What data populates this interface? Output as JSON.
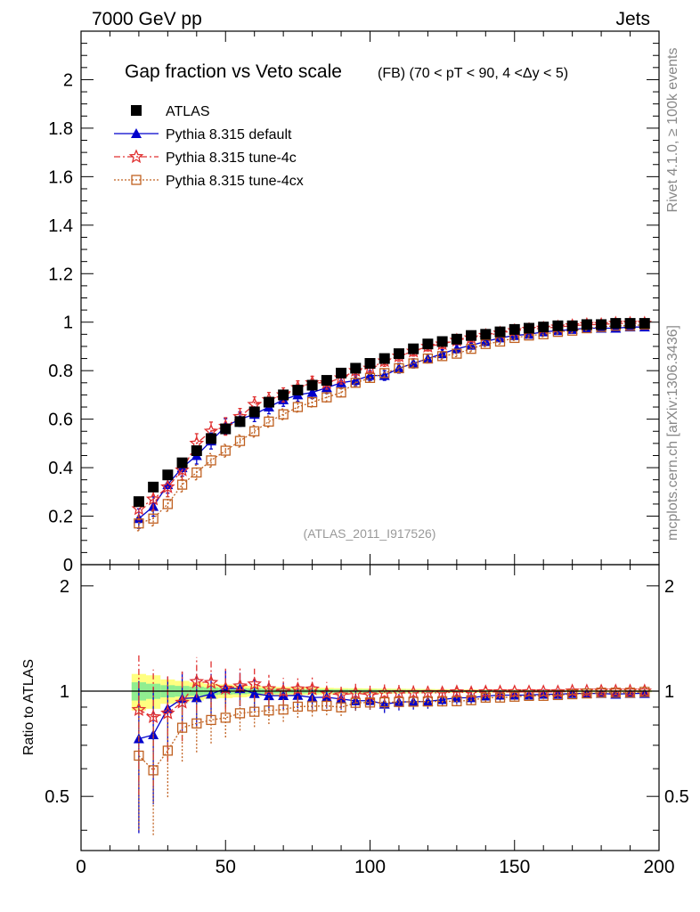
{
  "header": {
    "left": "7000 GeV pp",
    "right": "Jets"
  },
  "side_labels": {
    "rivet": "Rivet 4.1.0, ≥ 100k events",
    "mcplots": "mcplots.cern.ch [arXiv:1306.3436]"
  },
  "chart_data": {
    "type": "line",
    "title": "Gap fraction vs Veto scale",
    "title_suffix": "(FB) (70 < pT <  90, 4 <Δy < 5)",
    "analysis_tag": "(ATLAS_2011_I917526)",
    "xlabel": "",
    "ylabel": "",
    "ratio_ylabel": "Ratio to ATLAS",
    "xlim": [
      0,
      200
    ],
    "ylim": [
      0,
      2.2
    ],
    "ratio_ylim": [
      0.35,
      2.3
    ],
    "x_ticks": [
      "0",
      "50",
      "100",
      "150",
      "200"
    ],
    "y_ticks": [
      "0",
      "0.2",
      "0.4",
      "0.6",
      "0.8",
      "1",
      "1.2",
      "1.4",
      "1.6",
      "1.8",
      "2"
    ],
    "ratio_ticks": [
      "0.5",
      "1",
      "2"
    ],
    "legend_position": "top-left",
    "colors": {
      "data": "#000000",
      "default": "#0000cc",
      "tune4c": "#e03030",
      "tune4cx": "#c06020",
      "band_inner": "#90ee90",
      "band_outer": "#ffff80"
    },
    "x": [
      20,
      25,
      30,
      35,
      40,
      45,
      50,
      55,
      60,
      65,
      70,
      75,
      80,
      85,
      90,
      95,
      100,
      105,
      110,
      115,
      120,
      125,
      130,
      135,
      140,
      145,
      150,
      155,
      160,
      165,
      170,
      175,
      180,
      185,
      190,
      195
    ],
    "band_inner": [
      0.06,
      0.05,
      0.04,
      0.035,
      0.03,
      0.025,
      0.022,
      0.02,
      0.018,
      0.016,
      0.015,
      0.014,
      0.013,
      0.012,
      0.011,
      0.01,
      0.01,
      0.009,
      0.009,
      0.008,
      0.008,
      0.007,
      0.007,
      0.006,
      0.006,
      0.006,
      0.005,
      0.005,
      0.005,
      0.005,
      0.004,
      0.004,
      0.004,
      0.004,
      0.004,
      0.004
    ],
    "band_outer": [
      0.12,
      0.11,
      0.08,
      0.07,
      0.06,
      0.05,
      0.045,
      0.04,
      0.035,
      0.03,
      0.028,
      0.026,
      0.024,
      0.022,
      0.02,
      0.019,
      0.018,
      0.017,
      0.016,
      0.015,
      0.014,
      0.013,
      0.012,
      0.011,
      0.011,
      0.01,
      0.01,
      0.009,
      0.009,
      0.008,
      0.008,
      0.008,
      0.007,
      0.007,
      0.007,
      0.007
    ],
    "series": [
      {
        "name": "ATLAS",
        "key": "data",
        "values": [
          0.26,
          0.32,
          0.37,
          0.42,
          0.47,
          0.52,
          0.56,
          0.59,
          0.63,
          0.67,
          0.7,
          0.72,
          0.74,
          0.76,
          0.79,
          0.81,
          0.83,
          0.85,
          0.87,
          0.89,
          0.91,
          0.92,
          0.93,
          0.945,
          0.95,
          0.96,
          0.97,
          0.975,
          0.98,
          0.985,
          0.985,
          0.99,
          0.99,
          0.995,
          0.995,
          0.995
        ]
      },
      {
        "name": "Pythia 8.315 default",
        "key": "default",
        "values": [
          0.19,
          0.24,
          0.33,
          0.4,
          0.45,
          0.51,
          0.57,
          0.6,
          0.62,
          0.65,
          0.68,
          0.7,
          0.71,
          0.73,
          0.75,
          0.76,
          0.78,
          0.78,
          0.81,
          0.83,
          0.85,
          0.87,
          0.89,
          0.905,
          0.92,
          0.935,
          0.945,
          0.95,
          0.96,
          0.965,
          0.97,
          0.975,
          0.975,
          0.975,
          0.98,
          0.98
        ],
        "errors": [
          0.04,
          0.04,
          0.035,
          0.035,
          0.035,
          0.033,
          0.032,
          0.03,
          0.03,
          0.028,
          0.027,
          0.026,
          0.025,
          0.024,
          0.023,
          0.022,
          0.021,
          0.02,
          0.02,
          0.019,
          0.018,
          0.017,
          0.016,
          0.016,
          0.015,
          0.014,
          0.013,
          0.012,
          0.012,
          0.011,
          0.011,
          0.01,
          0.01,
          0.01,
          0.01,
          0.01
        ]
      },
      {
        "name": "Pythia 8.315 tune-4c",
        "key": "tune4c",
        "values": [
          0.23,
          0.27,
          0.32,
          0.39,
          0.5,
          0.55,
          0.57,
          0.61,
          0.66,
          0.68,
          0.7,
          0.73,
          0.75,
          0.75,
          0.77,
          0.8,
          0.81,
          0.84,
          0.86,
          0.88,
          0.9,
          0.91,
          0.925,
          0.935,
          0.945,
          0.955,
          0.965,
          0.97,
          0.975,
          0.98,
          0.985,
          0.99,
          0.99,
          0.995,
          0.995,
          0.995
        ],
        "errors": [
          0.045,
          0.045,
          0.04,
          0.04,
          0.04,
          0.038,
          0.036,
          0.034,
          0.032,
          0.03,
          0.029,
          0.028,
          0.027,
          0.026,
          0.025,
          0.024,
          0.023,
          0.022,
          0.021,
          0.02,
          0.019,
          0.018,
          0.017,
          0.016,
          0.015,
          0.014,
          0.013,
          0.013,
          0.012,
          0.012,
          0.011,
          0.011,
          0.011,
          0.01,
          0.01,
          0.01
        ]
      },
      {
        "name": "Pythia 8.315 tune-4cx",
        "key": "tune4cx",
        "values": [
          0.17,
          0.19,
          0.25,
          0.33,
          0.38,
          0.43,
          0.47,
          0.51,
          0.55,
          0.59,
          0.62,
          0.65,
          0.67,
          0.69,
          0.71,
          0.75,
          0.77,
          0.79,
          0.81,
          0.83,
          0.85,
          0.86,
          0.87,
          0.89,
          0.91,
          0.92,
          0.935,
          0.945,
          0.95,
          0.96,
          0.965,
          0.975,
          0.98,
          0.985,
          0.985,
          0.99
        ],
        "errors": [
          0.03,
          0.03,
          0.03,
          0.03,
          0.03,
          0.028,
          0.026,
          0.025,
          0.024,
          0.023,
          0.022,
          0.021,
          0.02,
          0.019,
          0.018,
          0.017,
          0.016,
          0.016,
          0.015,
          0.014,
          0.014,
          0.013,
          0.012,
          0.012,
          0.011,
          0.011,
          0.01,
          0.01,
          0.01,
          0.009,
          0.009,
          0.009,
          0.008,
          0.008,
          0.008,
          0.008
        ]
      }
    ]
  }
}
